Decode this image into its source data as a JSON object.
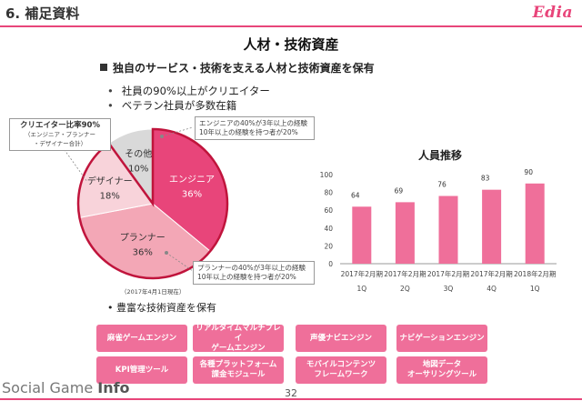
{
  "header": {
    "title": "6. 補足資料",
    "logo": "Edia"
  },
  "page_title": "人材・技術資産",
  "section_heading": "独自のサービス・技術を支える人材と技術資産を保有",
  "bullets": [
    "社員の90%以上がクリエイター",
    "ベテラン社員が多数在籍"
  ],
  "pie": {
    "slices": [
      {
        "label": "エンジニア",
        "value_label": "36%",
        "value": 36,
        "color": "#e8457a",
        "text_color": "#ffffff"
      },
      {
        "label": "プランナー",
        "value_label": "36%",
        "value": 36,
        "color": "#f3a7b6",
        "text_color": "#333333"
      },
      {
        "label": "デザイナー",
        "value_label": "18%",
        "value": 18,
        "color": "#f8d3da",
        "text_color": "#333333"
      },
      {
        "label": "その他",
        "value_label": "10%",
        "value": 10,
        "color": "#d9d9d9",
        "text_color": "#333333"
      }
    ],
    "creator_callout": [
      "クリエイター比率90%",
      "（エンジニア・プランナー",
      "・デザイナー合計）"
    ],
    "engineer_note": [
      "エンジニアの40%が3年以上の経験",
      "10年以上の経験を持つ者が20%"
    ],
    "planner_note": [
      "プランナーの40%が3年以上の経験",
      "10年以上の経験を持つ者が20%"
    ],
    "date_note": "（2017年4月1日現在）",
    "highlight_color": "#c0143c"
  },
  "chart_data": {
    "type": "bar",
    "title": "人員推移",
    "categories": [
      [
        "2017年2月期",
        "1Q"
      ],
      [
        "2017年2月期",
        "2Q"
      ],
      [
        "2017年2月期",
        "3Q"
      ],
      [
        "2017年2月期",
        "4Q"
      ],
      [
        "2018年2月期",
        "1Q"
      ]
    ],
    "values": [
      64,
      69,
      76,
      83,
      90
    ],
    "ylim": [
      0,
      100
    ],
    "yticks": [
      0,
      20,
      40,
      60,
      80,
      100
    ],
    "grid": false,
    "bar_color": "#ef6f9a"
  },
  "tech_heading": "• 豊富な技術資産を保有",
  "tech_assets": [
    "麻雀ゲームエンジン",
    "リアルタイムマルチプレイ\nゲームエンジン",
    "声優ナビエンジン",
    "ナビゲーションエンジン",
    "KPI管理ツール",
    "各種プラットフォーム\n課金モジュール",
    "モバイルコンテンツ\nフレームワーク",
    "地図データ\nオーサリングツール"
  ],
  "footer": {
    "brand_light": "Social Game ",
    "brand_bold": "Info",
    "page_number": "32"
  },
  "colors": {
    "accent": "#e8457a",
    "button": "#ef6f9a"
  }
}
